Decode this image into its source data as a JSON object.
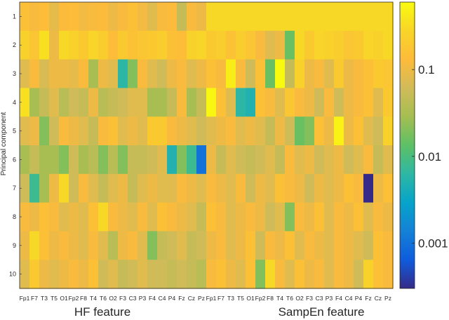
{
  "chart_data": {
    "type": "heatmap",
    "ylabel": "Principal component",
    "group_labels": [
      "HF feature",
      "SampEn feature"
    ],
    "channels": [
      "Fp1",
      "F7",
      "T3",
      "T5",
      "O1",
      "Fp2",
      "F8",
      "T4",
      "T6",
      "O2",
      "F3",
      "C3",
      "P3",
      "F4",
      "C4",
      "P4",
      "Fz",
      "Cz",
      "Pz"
    ],
    "x_tick_labels": [
      "Fp1",
      "F7",
      "T3",
      "T5",
      "O1",
      "Fp2",
      "F8",
      "T4",
      "T6",
      "O2",
      "F3",
      "C3",
      "P3",
      "F4",
      "C4",
      "P4",
      "Fz",
      "Cz",
      "Pz",
      "Fp1",
      "F7",
      "T3",
      "T5",
      "O1",
      "Fp2",
      "F8",
      "T4",
      "T6",
      "O2",
      "F3",
      "C3",
      "P3",
      "F4",
      "C4",
      "P4",
      "Fz",
      "Cz",
      "Pz"
    ],
    "y_tick_labels": [
      "1",
      "2",
      "3",
      "4",
      "5",
      "6",
      "7",
      "8",
      "9",
      "10"
    ],
    "colorbar": {
      "scale": "log",
      "ticks": [
        0.001,
        0.01,
        0.1
      ],
      "tick_labels": [
        "0.001",
        "0.01",
        "0.1"
      ],
      "range": [
        0.0003,
        0.6
      ],
      "colormap": "parula"
    },
    "values": [
      [
        0.15,
        0.12,
        0.14,
        0.09,
        0.13,
        0.14,
        0.11,
        0.12,
        0.13,
        0.1,
        0.12,
        0.15,
        0.11,
        0.08,
        0.12,
        0.13,
        0.05,
        0.12,
        0.1,
        0.3,
        0.3,
        0.3,
        0.3,
        0.3,
        0.3,
        0.3,
        0.3,
        0.3,
        0.3,
        0.3,
        0.3,
        0.3,
        0.3,
        0.3,
        0.3,
        0.3,
        0.3,
        0.3
      ],
      [
        0.25,
        0.18,
        0.35,
        0.1,
        0.3,
        0.25,
        0.2,
        0.28,
        0.22,
        0.14,
        0.2,
        0.16,
        0.18,
        0.2,
        0.22,
        0.15,
        0.14,
        0.25,
        0.28,
        0.2,
        0.22,
        0.16,
        0.22,
        0.18,
        0.12,
        0.08,
        0.1,
        0.015,
        0.3,
        0.2,
        0.28,
        0.25,
        0.22,
        0.18,
        0.2,
        0.28,
        0.25,
        0.3
      ],
      [
        0.08,
        0.12,
        0.07,
        0.1,
        0.1,
        0.09,
        0.12,
        0.03,
        0.1,
        0.08,
        0.006,
        0.02,
        0.12,
        0.08,
        0.06,
        0.1,
        0.12,
        0.08,
        0.1,
        0.15,
        0.12,
        0.45,
        0.12,
        0.06,
        0.15,
        0.015,
        0.6,
        0.05,
        0.25,
        0.1,
        0.12,
        0.08,
        0.2,
        0.1,
        0.12,
        0.15,
        0.2,
        0.18
      ],
      [
        0.35,
        0.03,
        0.05,
        0.08,
        0.04,
        0.06,
        0.05,
        0.1,
        0.04,
        0.05,
        0.06,
        0.08,
        0.08,
        0.03,
        0.03,
        0.05,
        0.12,
        0.03,
        0.05,
        0.55,
        0.15,
        0.08,
        0.006,
        0.005,
        0.15,
        0.12,
        0.08,
        0.18,
        0.12,
        0.1,
        0.06,
        0.12,
        0.06,
        0.1,
        0.12,
        0.15,
        0.08,
        0.2
      ],
      [
        0.08,
        0.1,
        0.02,
        0.06,
        0.12,
        0.1,
        0.08,
        0.05,
        0.12,
        0.15,
        0.08,
        0.1,
        0.08,
        0.2,
        0.2,
        0.12,
        0.1,
        0.08,
        0.06,
        0.08,
        0.1,
        0.12,
        0.08,
        0.1,
        0.08,
        0.05,
        0.1,
        0.06,
        0.015,
        0.02,
        0.15,
        0.1,
        0.5,
        0.1,
        0.15,
        0.08,
        0.06,
        0.25
      ],
      [
        0.03,
        0.05,
        0.03,
        0.03,
        0.02,
        0.06,
        0.03,
        0.04,
        0.02,
        0.04,
        0.02,
        0.05,
        0.05,
        0.06,
        0.08,
        0.005,
        0.02,
        0.008,
        0.001,
        0.1,
        0.05,
        0.08,
        0.06,
        0.05,
        0.06,
        0.08,
        0.05,
        0.12,
        0.08,
        0.1,
        0.06,
        0.08,
        0.1,
        0.06,
        0.08,
        0.12,
        0.05,
        0.08
      ],
      [
        0.06,
        0.008,
        0.03,
        0.1,
        0.3,
        0.06,
        0.12,
        0.08,
        0.05,
        0.08,
        0.1,
        0.05,
        0.08,
        0.1,
        0.08,
        0.08,
        0.12,
        0.1,
        0.08,
        0.12,
        0.1,
        0.08,
        0.12,
        0.06,
        0.1,
        0.08,
        0.15,
        0.12,
        0.1,
        0.06,
        0.1,
        0.08,
        0.1,
        0.15,
        0.12,
        0.0003,
        0.1,
        0.15
      ],
      [
        0.12,
        0.1,
        0.15,
        0.12,
        0.08,
        0.1,
        0.08,
        0.15,
        0.3,
        0.12,
        0.1,
        0.08,
        0.12,
        0.08,
        0.15,
        0.12,
        0.1,
        0.08,
        0.05,
        0.15,
        0.12,
        0.08,
        0.1,
        0.12,
        0.1,
        0.06,
        0.08,
        0.02,
        0.12,
        0.1,
        0.15,
        0.08,
        0.12,
        0.1,
        0.15,
        0.08,
        0.12,
        0.1
      ],
      [
        0.1,
        0.3,
        0.15,
        0.1,
        0.12,
        0.1,
        0.08,
        0.12,
        0.08,
        0.04,
        0.1,
        0.12,
        0.08,
        0.02,
        0.05,
        0.06,
        0.08,
        0.05,
        0.06,
        0.1,
        0.12,
        0.08,
        0.1,
        0.15,
        0.06,
        0.12,
        0.1,
        0.15,
        0.08,
        0.12,
        0.1,
        0.08,
        0.12,
        0.1,
        0.08,
        0.06,
        0.15,
        0.12
      ],
      [
        0.08,
        0.2,
        0.1,
        0.08,
        0.1,
        0.12,
        0.1,
        0.15,
        0.06,
        0.08,
        0.05,
        0.06,
        0.08,
        0.06,
        0.06,
        0.05,
        0.06,
        0.05,
        0.04,
        0.12,
        0.15,
        0.1,
        0.08,
        0.15,
        0.02,
        0.3,
        0.12,
        0.08,
        0.15,
        0.1,
        0.12,
        0.08,
        0.12,
        0.1,
        0.06,
        0.25,
        0.15,
        0.12
      ]
    ]
  }
}
